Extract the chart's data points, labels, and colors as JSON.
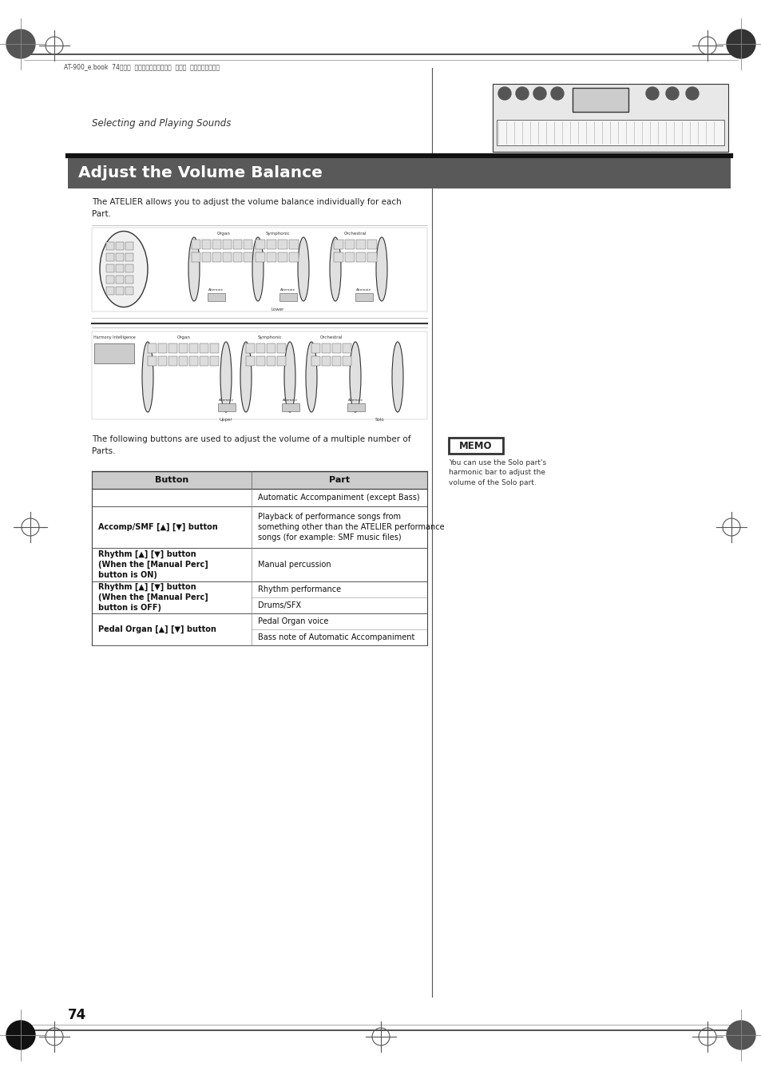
{
  "page_bg": "#ffffff",
  "header_text": "AT-900_e.book  74ページ  ２００８年９朎１６日  火曜日  午前１０時３８分",
  "section_label": "Selecting and Playing Sounds",
  "title_bg": "#595959",
  "title_text": "Adjust the Volume Balance",
  "title_color": "#ffffff",
  "body_text1": "The ATELIER allows you to adjust the volume balance individually for each\nPart.",
  "body_text2": "The following buttons are used to adjust the volume of a multiple number of\nParts.",
  "memo_title": "MEMO",
  "memo_text": "You can use the Solo part's\nharmonic bar to adjust the\nvolume of the Solo part.",
  "table_header_col1": "Button",
  "table_header_col2": "Part",
  "page_number": "74"
}
